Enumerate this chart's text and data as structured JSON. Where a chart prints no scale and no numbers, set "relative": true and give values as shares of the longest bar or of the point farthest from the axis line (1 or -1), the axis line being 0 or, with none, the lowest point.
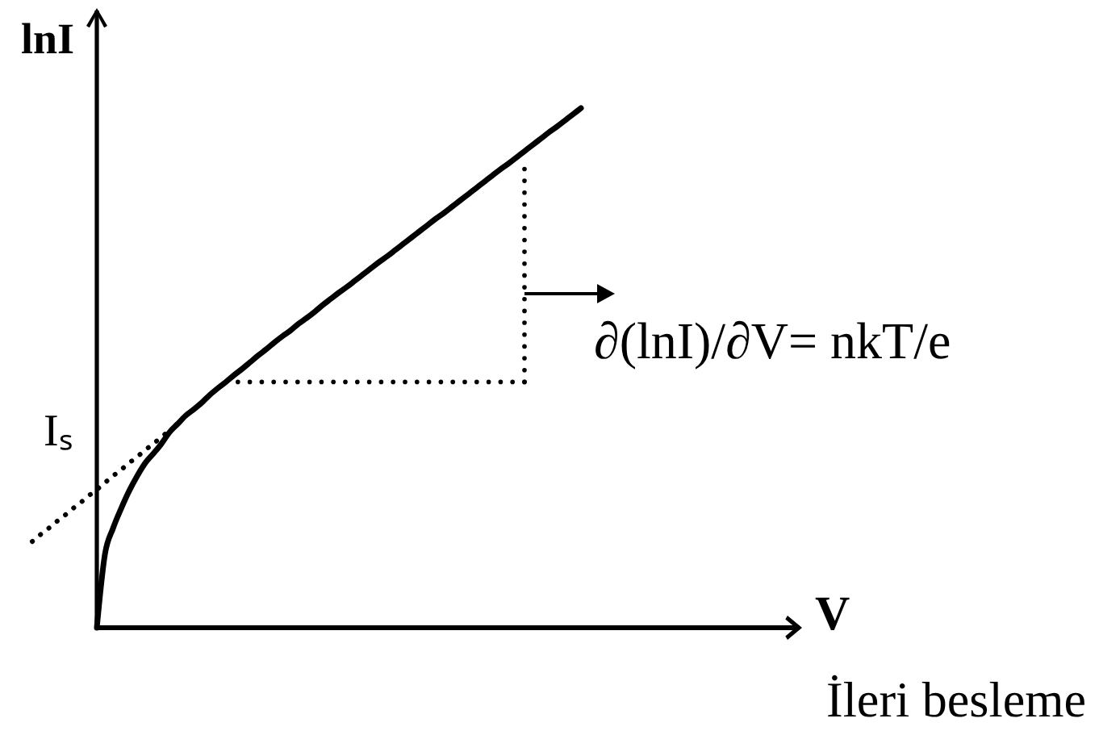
{
  "chart_data": {
    "type": "line",
    "relative": true,
    "xlabel": "V",
    "ylabel": "lnI",
    "line_style": "solid",
    "annotations": [
      "Iₛ",
      "∂(lnI)/∂V= nkT/e",
      "İleri besleme"
    ],
    "categories": [
      null,
      null,
      null,
      null,
      null,
      null,
      null,
      null,
      null,
      null,
      null,
      null,
      null,
      null,
      null,
      null,
      null,
      null,
      null,
      null,
      null,
      null,
      null,
      null,
      null,
      null,
      null,
      null,
      null,
      null,
      null,
      null,
      null,
      null,
      null,
      null,
      null,
      null,
      null,
      null,
      null,
      null,
      null,
      null,
      null,
      null,
      null,
      null,
      null,
      null,
      null,
      null,
      null,
      null,
      null,
      null,
      null,
      null,
      null,
      null,
      null,
      null,
      null,
      null,
      null,
      null,
      null,
      null,
      null,
      null,
      null,
      null,
      null,
      null,
      null,
      null,
      null,
      null,
      null,
      null,
      null,
      null,
      null,
      null,
      null,
      null,
      null,
      null,
      null,
      null,
      null,
      null,
      null,
      null,
      null,
      null
    ],
    "series": [
      {
        "color": "#000000",
        "values": [
          null,
          null,
          null,
          null,
          null,
          null,
          null,
          null,
          0,
          0.141,
          0.191,
          0.229,
          0.263,
          0.292,
          0.317,
          0.335,
          0.354,
          0.376,
          0.392,
          0.408,
          0.42,
          0.433,
          0.448,
          0.461,
          0.473,
          0.486,
          0.498,
          0.511,
          0.524,
          0.536,
          0.549,
          0.561,
          0.572,
          0.585,
          0.596,
          0.608,
          0.621,
          0.633,
          0.645,
          0.656,
          0.668,
          0.68,
          0.692,
          0.704,
          0.715,
          0.727,
          0.739,
          0.751,
          0.763,
          0.775,
          0.787,
          0.798,
          0.81,
          0.822,
          0.834,
          0.846,
          0.858,
          0.87,
          0.882,
          0.893,
          0.905,
          0.917,
          0.929,
          0.941,
          0.953,
          0.964,
          0.976,
          0.988,
          1,
          null,
          null,
          null,
          null,
          null,
          null,
          null,
          null,
          null,
          null,
          null,
          null,
          null,
          null,
          null,
          null,
          null,
          null,
          null,
          null,
          null,
          null,
          null,
          null,
          null,
          null,
          null
        ]
      },
      {
        "color": "#000000",
        "line_style": "dotted",
        "values": [
          0.166,
          0.179,
          0.191,
          0.204,
          0.216,
          0.229,
          0.241,
          0.254,
          0.266,
          0.279,
          0.292,
          0.304,
          0.317,
          0.329,
          0.342,
          0.354,
          0.367,
          0.379,
          null,
          null,
          null,
          null,
          null,
          null,
          null,
          null,
          null,
          null,
          null,
          null,
          null,
          null,
          null,
          null,
          null,
          null,
          null,
          null,
          null,
          null,
          null,
          null,
          null,
          null,
          null,
          null,
          null,
          null,
          null,
          null,
          null,
          null,
          null,
          null,
          null,
          null,
          null,
          null,
          null,
          null,
          null,
          null,
          null,
          null,
          null,
          null,
          null,
          null,
          null,
          null,
          null,
          null,
          null,
          null,
          null,
          null,
          null,
          null,
          null,
          null,
          null,
          null,
          null,
          null,
          null,
          null,
          null,
          null,
          null,
          null,
          null,
          null,
          null,
          null,
          null,
          null
        ]
      }
    ]
  }
}
